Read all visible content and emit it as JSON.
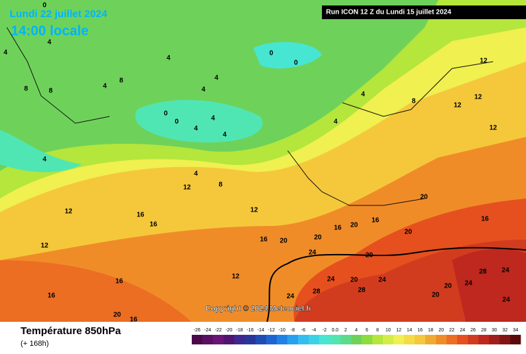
{
  "header": {
    "date": "Lundi 22 juillet 2024",
    "time": "14:00 locale",
    "run": "Run ICON 12 Z du Lundi 15 juillet 2024"
  },
  "map": {
    "copyright": "Copyright © 2024 Meteociel.fr",
    "contour_labels": [
      0,
      4,
      4,
      4,
      0,
      0,
      8,
      8,
      4,
      8,
      4,
      4,
      0,
      0,
      4,
      4,
      4,
      4,
      4,
      8,
      12,
      12,
      12,
      12,
      4,
      4,
      8,
      12,
      12,
      16,
      16,
      12,
      12,
      16,
      20,
      20,
      16,
      16,
      16,
      20,
      20,
      24,
      20,
      20,
      28,
      24,
      24,
      20,
      24,
      28,
      28,
      24,
      20,
      24,
      12,
      16,
      16,
      20,
      16,
      20,
      24
    ]
  },
  "footer": {
    "title": "Température 850hPa",
    "subtitle": "(+ 168h)"
  },
  "legend": {
    "labels": [
      "-26",
      "-24",
      "-22",
      "-20",
      "-18",
      "-16",
      "-14",
      "-12",
      "-10",
      "-8",
      "-6",
      "-4",
      "-2",
      "0.0",
      "2",
      "4",
      "6",
      "8",
      "10",
      "12",
      "14",
      "16",
      "18",
      "20",
      "22",
      "24",
      "26",
      "28",
      "30",
      "32",
      "34"
    ],
    "colors": [
      "#4a0a4a",
      "#5a1060",
      "#6a1478",
      "#501470",
      "#3c2890",
      "#28369c",
      "#1e4cb4",
      "#1e64d2",
      "#1e82e6",
      "#28a0f0",
      "#32bef0",
      "#3cd2e6",
      "#46e6d2",
      "#50e6b4",
      "#5adc8c",
      "#6ed25a",
      "#8cdc3c",
      "#b4e63c",
      "#d2ee46",
      "#f0f050",
      "#f5dc46",
      "#f5c83c",
      "#f0aa32",
      "#f08c28",
      "#eb6e23",
      "#e6501e",
      "#d23c1e",
      "#be281e",
      "#a01e1e",
      "#821414",
      "#5a0a0a"
    ]
  }
}
